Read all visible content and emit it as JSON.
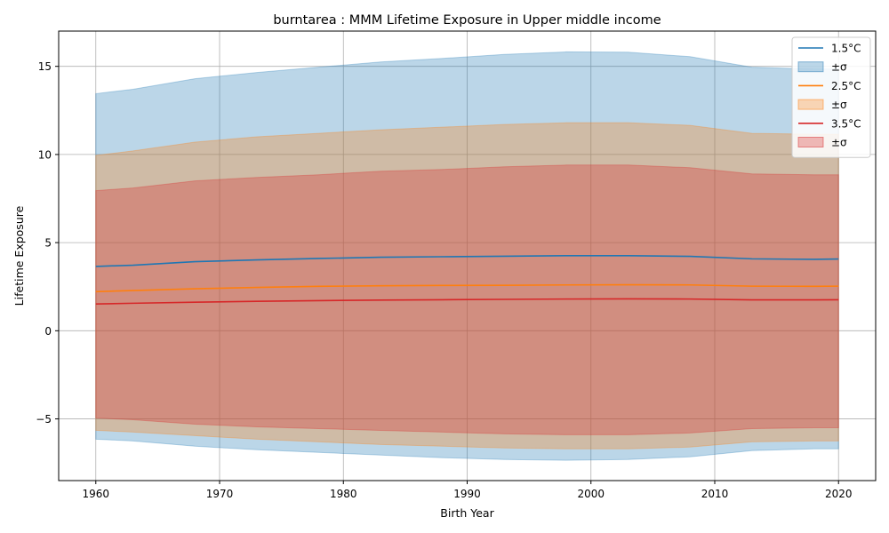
{
  "chart_data": {
    "type": "area",
    "title": "burntarea : MMM Lifetime Exposure in Upper middle income",
    "xlabel": "Birth Year",
    "ylabel": "Lifetime Exposure",
    "xlim": [
      1957,
      2023
    ],
    "ylim": [
      -8.5,
      17
    ],
    "xticks": [
      1960,
      1970,
      1980,
      1990,
      2000,
      2010,
      2020
    ],
    "yticks": [
      -5,
      0,
      5,
      10,
      15
    ],
    "ytick_labels": [
      "−5",
      "0",
      "5",
      "10",
      "15"
    ],
    "grid": true,
    "legend_position": "top-right",
    "x": [
      1960,
      1963,
      1968,
      1973,
      1978,
      1983,
      1988,
      1993,
      1998,
      2003,
      2008,
      2013,
      2018,
      2020
    ],
    "series": [
      {
        "name": "1.5°C",
        "band_label": "±σ",
        "color": "#1f77b4",
        "mean": [
          3.65,
          3.72,
          3.92,
          4.02,
          4.1,
          4.17,
          4.2,
          4.23,
          4.26,
          4.26,
          4.22,
          4.08,
          4.05,
          4.07
        ],
        "upper": [
          13.45,
          13.7,
          14.3,
          14.65,
          14.95,
          15.25,
          15.45,
          15.68,
          15.82,
          15.8,
          15.55,
          14.95,
          14.85,
          14.85
        ],
        "lower": [
          -6.15,
          -6.25,
          -6.55,
          -6.75,
          -6.9,
          -7.05,
          -7.2,
          -7.3,
          -7.35,
          -7.3,
          -7.15,
          -6.8,
          -6.7,
          -6.7
        ]
      },
      {
        "name": "2.5°C",
        "band_label": "±σ",
        "color": "#ff7f0e",
        "mean": [
          2.22,
          2.28,
          2.38,
          2.46,
          2.52,
          2.55,
          2.57,
          2.58,
          2.6,
          2.61,
          2.6,
          2.53,
          2.52,
          2.53
        ],
        "upper": [
          9.95,
          10.2,
          10.7,
          11.0,
          11.2,
          11.4,
          11.55,
          11.7,
          11.8,
          11.8,
          11.65,
          11.2,
          11.15,
          11.15
        ],
        "lower": [
          -5.65,
          -5.75,
          -5.95,
          -6.15,
          -6.3,
          -6.45,
          -6.55,
          -6.65,
          -6.7,
          -6.7,
          -6.6,
          -6.3,
          -6.25,
          -6.25
        ]
      },
      {
        "name": "3.5°C",
        "band_label": "±σ",
        "color": "#d62728",
        "mean": [
          1.52,
          1.56,
          1.62,
          1.67,
          1.71,
          1.74,
          1.76,
          1.78,
          1.8,
          1.81,
          1.8,
          1.75,
          1.75,
          1.76
        ],
        "upper": [
          7.95,
          8.1,
          8.5,
          8.7,
          8.85,
          9.05,
          9.15,
          9.3,
          9.4,
          9.4,
          9.25,
          8.9,
          8.85,
          8.85
        ],
        "lower": [
          -4.95,
          -5.05,
          -5.3,
          -5.45,
          -5.55,
          -5.65,
          -5.75,
          -5.85,
          -5.9,
          -5.9,
          -5.8,
          -5.55,
          -5.5,
          -5.5
        ]
      }
    ]
  }
}
